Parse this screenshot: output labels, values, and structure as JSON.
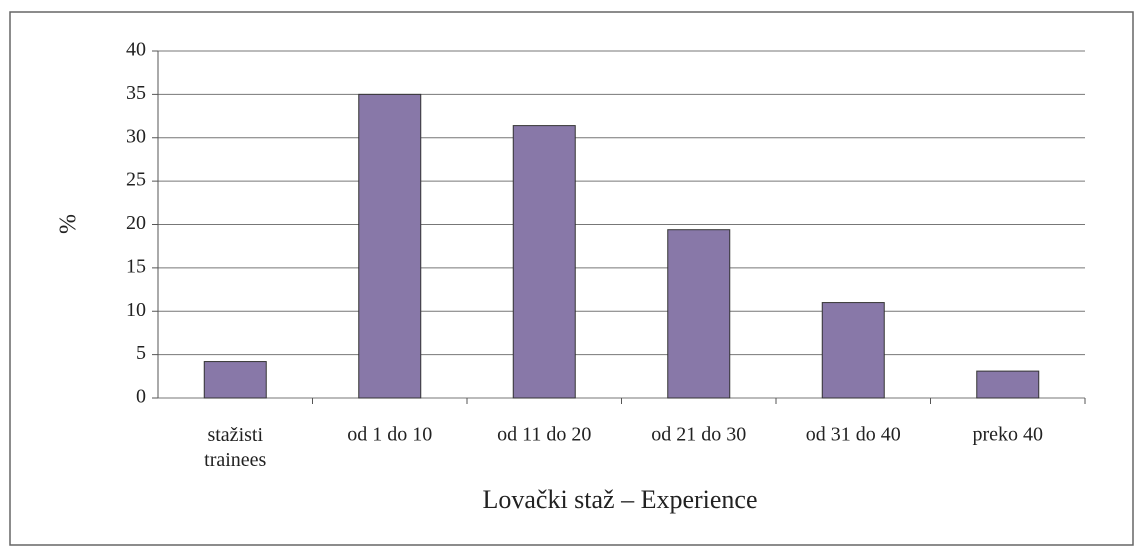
{
  "chart_data": {
    "type": "bar",
    "xlabel": "Lovački staž – Experience",
    "ylabel": "%",
    "categories": [
      "stažisti\ntrainees",
      "od 1 do 10",
      "od 11 do 20",
      "od 21 do 30",
      "od 31 do 40",
      "preko 40"
    ],
    "values": [
      4.2,
      35,
      31.4,
      19.4,
      11,
      3.1
    ],
    "color": "#8878a8",
    "ylim": [
      0,
      40
    ],
    "yticks": [
      0,
      5,
      10,
      15,
      20,
      25,
      30,
      35,
      40
    ],
    "grid": true
  }
}
